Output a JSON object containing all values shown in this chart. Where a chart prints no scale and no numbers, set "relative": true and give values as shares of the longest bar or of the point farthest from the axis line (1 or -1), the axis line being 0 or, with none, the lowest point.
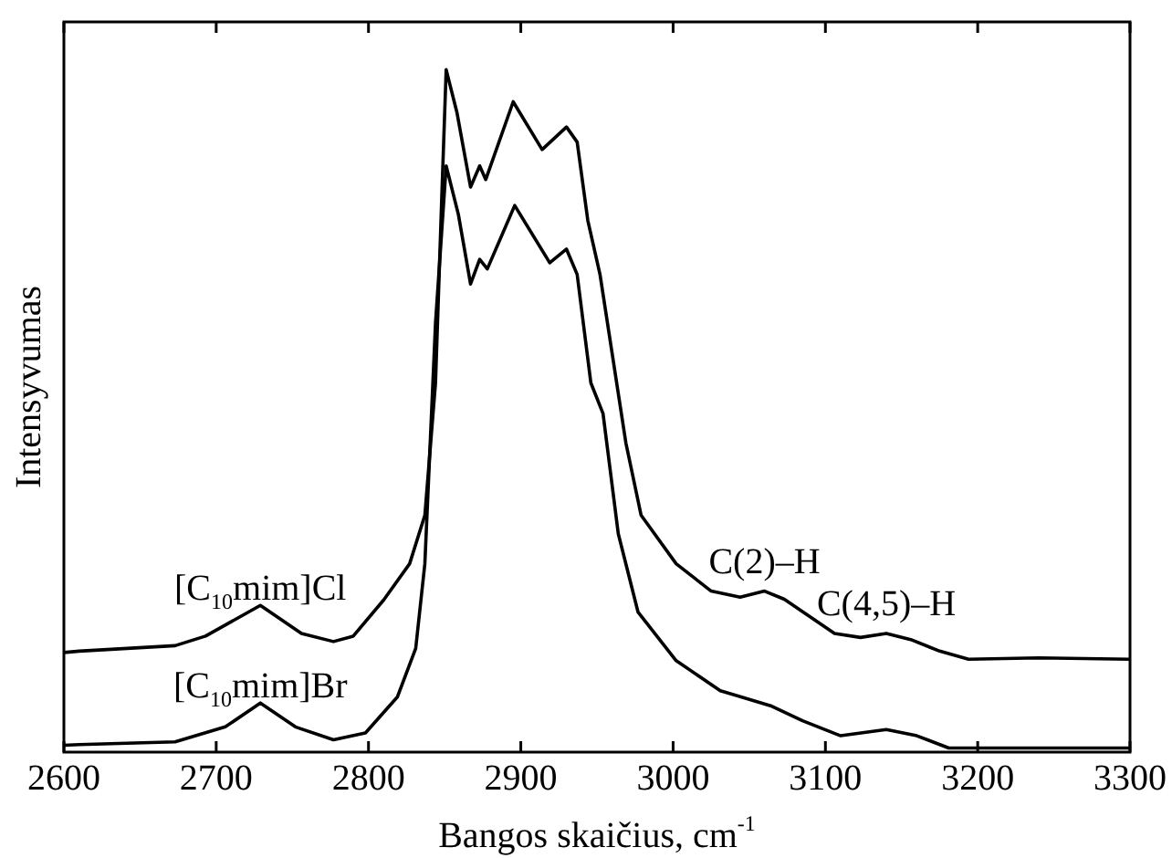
{
  "chart_data": {
    "type": "line",
    "xlabel": "Bangos skaičius, cm$^{-1}$",
    "ylabel": "Intensyvumas",
    "relative": true,
    "legend": false,
    "grid": false,
    "marker": "none",
    "line_style": "solid",
    "xlim": [
      2600,
      3300
    ],
    "xticks": [
      2600,
      2700,
      2800,
      2900,
      3000,
      3100,
      3200,
      3300
    ],
    "series": [
      {
        "name": "[C$_{10}$mim]Cl",
        "color": "#000000",
        "x": [
          2600,
          2610,
          2673,
          2693,
          2729,
          2756,
          2777,
          2790,
          2810,
          2827,
          2837,
          2844,
          2848,
          2851,
          2858,
          2867,
          2873,
          2877,
          2895,
          2914,
          2930,
          2937,
          2944,
          2952,
          2969,
          2979,
          3002,
          3025,
          3044,
          3060,
          3073,
          3106,
          3123,
          3140,
          3156,
          3175,
          3194,
          3240,
          3300
        ],
        "values": [
          0.146,
          0.148,
          0.156,
          0.17,
          0.215,
          0.174,
          0.162,
          0.17,
          0.223,
          0.276,
          0.347,
          0.541,
          0.806,
          1.0,
          0.938,
          0.828,
          0.859,
          0.839,
          0.953,
          0.883,
          0.916,
          0.894,
          0.779,
          0.7,
          0.453,
          0.347,
          0.276,
          0.236,
          0.227,
          0.236,
          0.224,
          0.174,
          0.168,
          0.174,
          0.165,
          0.148,
          0.136,
          0.138,
          0.136
        ]
      },
      {
        "name": "[C$_{10}$mim]Br",
        "color": "#000000",
        "x": [
          2600,
          2610,
          2673,
          2706,
          2729,
          2752,
          2777,
          2798,
          2819,
          2831,
          2837,
          2844,
          2851,
          2859,
          2867,
          2873,
          2878,
          2896,
          2919,
          2930,
          2937,
          2946,
          2954,
          2964,
          2977,
          3002,
          3031,
          3064,
          3085,
          3110,
          3140,
          3160,
          3181,
          3240,
          3300
        ],
        "values": [
          0.01,
          0.011,
          0.015,
          0.037,
          0.072,
          0.037,
          0.018,
          0.028,
          0.081,
          0.152,
          0.276,
          0.629,
          0.859,
          0.788,
          0.686,
          0.722,
          0.708,
          0.801,
          0.717,
          0.737,
          0.7,
          0.541,
          0.496,
          0.32,
          0.205,
          0.134,
          0.09,
          0.068,
          0.046,
          0.024,
          0.033,
          0.024,
          0.006,
          0.006,
          0.006
        ]
      }
    ],
    "annotations": [
      {
        "text": "C(2)–H",
        "x": 3060,
        "y": 0.236
      },
      {
        "text": "C(4,5)–H",
        "x": 3140,
        "y": 0.174
      }
    ]
  }
}
